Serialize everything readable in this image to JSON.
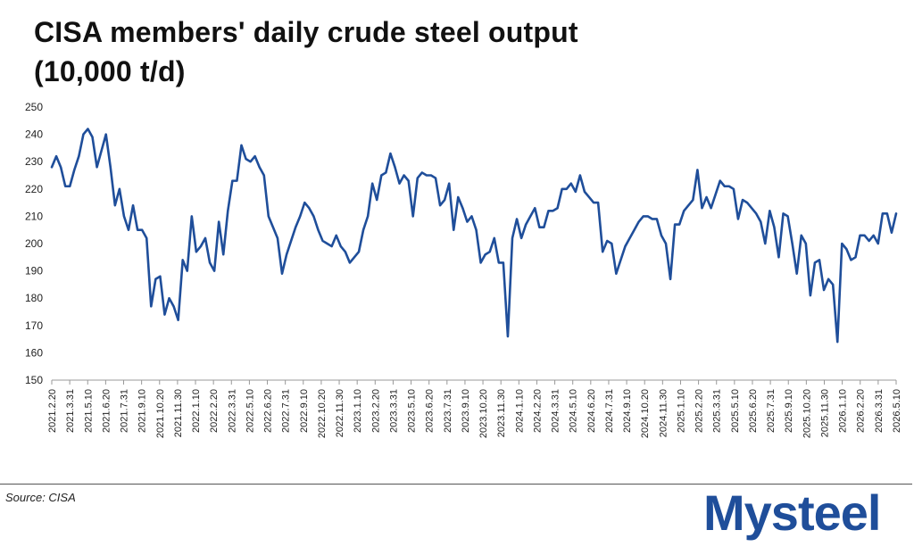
{
  "title_line1": "CISA members' daily crude steel output",
  "title_line2": "(10,000 t/d)",
  "source": "Source: CISA",
  "logo": {
    "text": "Mysteel",
    "color": "#1f4e9a"
  },
  "chart_data": {
    "type": "line",
    "title": "CISA members' daily crude steel output",
    "subtitle": "(10,000 t/d)",
    "ylim": [
      150,
      250
    ],
    "yticks": [
      150,
      160,
      170,
      180,
      190,
      200,
      210,
      220,
      230,
      240,
      250
    ],
    "grid": false,
    "line_color": "#1f4e9a",
    "xticks": [
      "2021.2.20",
      "2021.3.31",
      "2021.5.10",
      "2021.6.20",
      "2021.7.31",
      "2021.9.10",
      "2021.10.20",
      "2021.11.30",
      "2022.1.10",
      "2022.2.20",
      "2022.3.31",
      "2022.5.10",
      "2022.6.20",
      "2022.7.31",
      "2022.9.10",
      "2022.10.20",
      "2022.11.30",
      "2023.1.10",
      "2023.2.20",
      "2023.3.31",
      "2023.5.10",
      "2023.6.20",
      "2023.7.31",
      "2023.9.10",
      "2023.10.20",
      "2023.11.30",
      "2024.1.10",
      "2024.2.20",
      "2024.3.31",
      "2024.5.10",
      "2024.6.20",
      "2024.7.31",
      "2024.9.10",
      "2024.10.20",
      "2024.11.30",
      "2025.1.10",
      "2025.2.20",
      "2025.3.31",
      "2025.5.10",
      "2025.6.20",
      "2025.7.31",
      "2025.9.10",
      "2025.10.20",
      "2025.11.30",
      "2026.1.10",
      "2026.2.20",
      "2026.3.31",
      "2026.5.10"
    ],
    "series": [
      {
        "values": [
          228,
          232,
          228,
          221,
          221,
          227,
          232,
          240,
          242,
          239,
          228,
          234,
          240,
          228,
          214,
          220,
          210,
          205,
          214,
          205,
          205,
          202,
          177,
          187,
          188,
          174,
          180,
          177,
          172,
          194,
          190,
          210,
          197,
          199,
          202,
          193,
          190,
          208,
          196,
          212,
          223,
          223,
          236,
          231,
          230,
          232,
          228,
          225,
          210,
          206,
          202,
          189,
          196,
          201,
          206,
          210,
          215,
          213,
          210,
          205,
          201,
          200,
          199,
          203,
          199,
          197,
          193,
          195,
          197,
          205,
          210,
          222,
          216,
          225,
          226,
          233,
          228,
          222,
          225,
          223,
          210,
          224,
          226,
          225,
          225,
          224,
          214,
          216,
          222,
          205,
          217,
          213,
          208,
          210,
          205,
          193,
          196,
          197,
          202,
          193,
          193,
          166,
          202,
          209,
          202,
          207,
          210,
          213,
          206,
          206,
          212,
          212,
          213,
          220,
          220,
          222,
          219,
          225,
          219,
          217,
          215,
          215,
          197,
          201,
          200,
          189,
          194,
          199,
          202,
          205,
          208,
          210,
          210,
          209,
          209,
          203,
          200,
          187,
          207,
          207,
          212,
          214,
          216,
          227,
          213,
          217,
          213,
          218,
          223,
          221,
          221,
          220,
          209,
          216,
          215,
          213,
          211,
          208,
          200,
          212,
          206,
          195,
          211,
          210,
          200,
          189,
          203,
          200,
          181,
          193,
          194,
          183,
          187,
          185,
          164,
          200,
          198,
          194,
          195,
          203,
          203,
          201,
          203,
          200,
          211,
          211,
          204,
          211
        ]
      }
    ]
  }
}
